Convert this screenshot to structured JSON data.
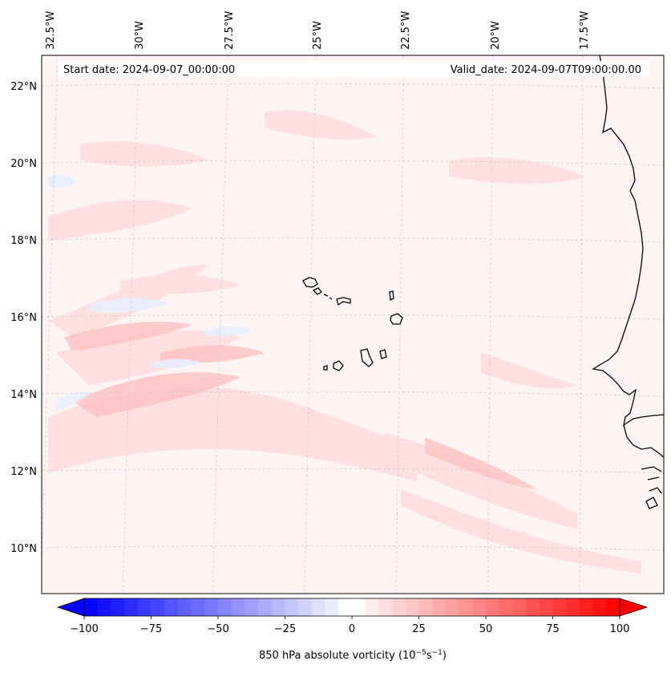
{
  "map": {
    "start_date": "Start date: 2024-09-07_00:00:00",
    "valid_date": "Valid_date: 2024-09-07T09:00:00.00",
    "lon_labels": [
      "32.5°W",
      "30°W",
      "27.5°W",
      "25°W",
      "22.5°W",
      "20°W",
      "17.5°W"
    ],
    "lat_labels": [
      "22°N",
      "20°N",
      "18°N",
      "16°N",
      "14°N",
      "12°N",
      "10°N"
    ],
    "field_name": "850 hPa absolute vorticity",
    "units_prefix": "(10",
    "units_exp1": "−5",
    "units_mid": "s",
    "units_exp2": "−1",
    "units_suffix": ")"
  },
  "colorbar": {
    "min": -100,
    "max": 100,
    "step": 5,
    "ticks": [
      -100,
      -75,
      -50,
      -25,
      0,
      25,
      50,
      75,
      100
    ],
    "tick_labels": [
      "−100",
      "−75",
      "−50",
      "−25",
      "0",
      "25",
      "50",
      "75",
      "100"
    ],
    "color_low": "#0000ff",
    "color_mid": "#ffffff",
    "color_high": "#ff0000"
  },
  "colors": {
    "coastline": "#000000",
    "gridline": "#c8c8c8",
    "field_background": "#fff4f4",
    "anomaly_positive": "#ffd6d6",
    "anomaly_negative": "#e6ecff"
  }
}
